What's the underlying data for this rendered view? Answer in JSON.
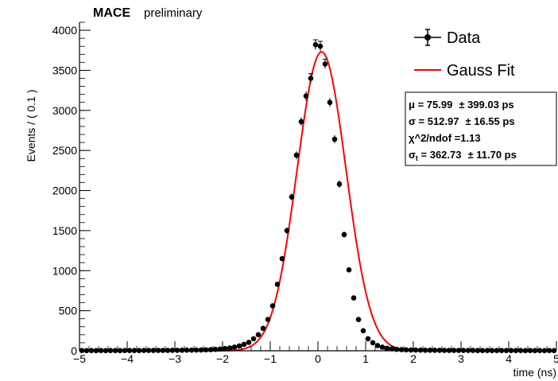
{
  "chart_data": {
    "type": "scatter",
    "title": "MACE",
    "subtitle": "preliminary",
    "xlabel": "time (ns)",
    "ylabel": "Events / ( 0.1 )",
    "xlim": [
      -5,
      5
    ],
    "ylim": [
      0,
      4100
    ],
    "x_ticks": [
      -5,
      -4,
      -3,
      -2,
      -1,
      0,
      1,
      2,
      3,
      4,
      5
    ],
    "y_ticks": [
      0,
      500,
      1000,
      1500,
      2000,
      2500,
      3000,
      3500,
      4000
    ],
    "grid": false,
    "legend": {
      "placement": "top-right",
      "entries": [
        {
          "label": "Data",
          "color": "#000000",
          "style": "marker-errorbar"
        },
        {
          "label": "Gauss Fit",
          "color": "#ff0000",
          "style": "line"
        }
      ]
    },
    "stats_box": {
      "placement": "right",
      "lines": [
        {
          "sym": "μ",
          "sub": "",
          "text": " = 75.99",
          "err": "± 399.03 ps"
        },
        {
          "sym": "σ",
          "sub": "",
          "text": " = 512.97",
          "err": "± 16.55 ps"
        },
        {
          "sym": "χ",
          "sub": "",
          "text": "^2/ndof =1.13",
          "err": ""
        },
        {
          "sym": "σ",
          "sub": "t",
          "text": " = 362.73",
          "err": "± 11.70 ps"
        }
      ]
    },
    "series": [
      {
        "name": "Data",
        "color": "#000000",
        "x": [
          -4.95,
          -4.85,
          -4.75,
          -4.65,
          -4.55,
          -4.45,
          -4.35,
          -4.25,
          -4.15,
          -4.05,
          -3.95,
          -3.85,
          -3.75,
          -3.65,
          -3.55,
          -3.45,
          -3.35,
          -3.25,
          -3.15,
          -3.05,
          -2.95,
          -2.85,
          -2.75,
          -2.65,
          -2.55,
          -2.45,
          -2.35,
          -2.25,
          -2.15,
          -2.05,
          -1.95,
          -1.85,
          -1.75,
          -1.65,
          -1.55,
          -1.45,
          -1.35,
          -1.25,
          -1.15,
          -1.05,
          -0.95,
          -0.85,
          -0.75,
          -0.65,
          -0.55,
          -0.45,
          -0.35,
          -0.25,
          -0.15,
          -0.05,
          0.05,
          0.15,
          0.25,
          0.35,
          0.45,
          0.55,
          0.65,
          0.75,
          0.85,
          0.95,
          1.05,
          1.15,
          1.25,
          1.35,
          1.45,
          1.55,
          1.65,
          1.75,
          1.85,
          1.95,
          2.05,
          2.15,
          2.25,
          2.35,
          2.45,
          2.55,
          2.65,
          2.75,
          2.85,
          2.95,
          3.05,
          3.15,
          3.25,
          3.35,
          3.45,
          3.55,
          3.65,
          3.75,
          3.85,
          3.95,
          4.05,
          4.15,
          4.25,
          4.35,
          4.45,
          4.55,
          4.65,
          4.75,
          4.85,
          4.95
        ],
        "y": [
          3,
          2,
          3,
          2,
          3,
          2,
          3,
          3,
          2,
          3,
          3,
          3,
          3,
          4,
          4,
          4,
          5,
          5,
          5,
          6,
          6,
          7,
          8,
          8,
          9,
          10,
          12,
          14,
          18,
          22,
          28,
          35,
          45,
          60,
          80,
          105,
          150,
          200,
          280,
          390,
          560,
          830,
          1150,
          1500,
          1920,
          2440,
          2860,
          3180,
          3400,
          3820,
          3800,
          3580,
          3100,
          2640,
          2080,
          1450,
          1010,
          660,
          390,
          250,
          150,
          100,
          65,
          45,
          32,
          25,
          18,
          14,
          12,
          10,
          9,
          8,
          7,
          7,
          6,
          6,
          5,
          5,
          5,
          4,
          4,
          4,
          4,
          3,
          3,
          3,
          3,
          3,
          3,
          3,
          3,
          3,
          3,
          2,
          3,
          2,
          3,
          2,
          3,
          2
        ],
        "yerr_shown": [
          -0.05,
          0.05,
          0.15,
          -0.15
        ]
      },
      {
        "name": "Gauss Fit",
        "color": "#ff0000",
        "function": "gaussian",
        "amplitude": 3730,
        "mean": 0.076,
        "sigma": 0.513
      }
    ]
  }
}
